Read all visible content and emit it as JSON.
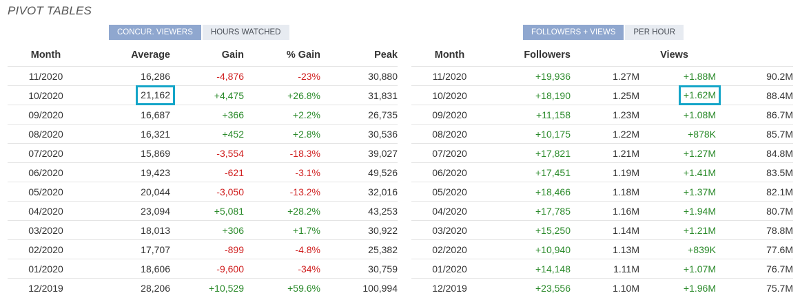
{
  "page_title": "PIVOT TABLES",
  "left": {
    "tabs": [
      {
        "label": "CONCUR. VIEWERS",
        "active": true
      },
      {
        "label": "HOURS WATCHED",
        "active": false
      }
    ],
    "headers": [
      "Month",
      "Average",
      "Gain",
      "% Gain",
      "Peak"
    ],
    "rows": [
      {
        "month": "11/2020",
        "average": "16,286",
        "gain": "-4,876",
        "pct": "-23%",
        "peak": "30,880",
        "dir": "neg"
      },
      {
        "month": "10/2020",
        "average": "21,162",
        "gain": "+4,475",
        "pct": "+26.8%",
        "peak": "31,831",
        "dir": "pos",
        "highlight": true
      },
      {
        "month": "09/2020",
        "average": "16,687",
        "gain": "+366",
        "pct": "+2.2%",
        "peak": "26,735",
        "dir": "pos"
      },
      {
        "month": "08/2020",
        "average": "16,321",
        "gain": "+452",
        "pct": "+2.8%",
        "peak": "30,536",
        "dir": "pos"
      },
      {
        "month": "07/2020",
        "average": "15,869",
        "gain": "-3,554",
        "pct": "-18.3%",
        "peak": "39,027",
        "dir": "neg"
      },
      {
        "month": "06/2020",
        "average": "19,423",
        "gain": "-621",
        "pct": "-3.1%",
        "peak": "49,526",
        "dir": "neg"
      },
      {
        "month": "05/2020",
        "average": "20,044",
        "gain": "-3,050",
        "pct": "-13.2%",
        "peak": "32,016",
        "dir": "neg"
      },
      {
        "month": "04/2020",
        "average": "23,094",
        "gain": "+5,081",
        "pct": "+28.2%",
        "peak": "43,253",
        "dir": "pos"
      },
      {
        "month": "03/2020",
        "average": "18,013",
        "gain": "+306",
        "pct": "+1.7%",
        "peak": "30,922",
        "dir": "pos"
      },
      {
        "month": "02/2020",
        "average": "17,707",
        "gain": "-899",
        "pct": "-4.8%",
        "peak": "25,382",
        "dir": "neg"
      },
      {
        "month": "01/2020",
        "average": "18,606",
        "gain": "-9,600",
        "pct": "-34%",
        "peak": "30,759",
        "dir": "neg"
      },
      {
        "month": "12/2019",
        "average": "28,206",
        "gain": "+10,529",
        "pct": "+59.6%",
        "peak": "100,994",
        "dir": "pos"
      }
    ]
  },
  "right": {
    "tabs": [
      {
        "label": "FOLLOWERS + VIEWS",
        "active": true
      },
      {
        "label": "PER HOUR",
        "active": false
      }
    ],
    "headers": [
      "Month",
      "Followers",
      "Views"
    ],
    "rows": [
      {
        "month": "11/2020",
        "followers_gain": "+19,936",
        "followers_total": "1.27M",
        "views_gain": "+1.88M",
        "views_total": "90.2M"
      },
      {
        "month": "10/2020",
        "followers_gain": "+18,190",
        "followers_total": "1.25M",
        "views_gain": "+1.62M",
        "views_total": "88.4M",
        "highlight": true
      },
      {
        "month": "09/2020",
        "followers_gain": "+11,158",
        "followers_total": "1.23M",
        "views_gain": "+1.08M",
        "views_total": "86.7M"
      },
      {
        "month": "08/2020",
        "followers_gain": "+10,175",
        "followers_total": "1.22M",
        "views_gain": "+878K",
        "views_total": "85.7M"
      },
      {
        "month": "07/2020",
        "followers_gain": "+17,821",
        "followers_total": "1.21M",
        "views_gain": "+1.27M",
        "views_total": "84.8M"
      },
      {
        "month": "06/2020",
        "followers_gain": "+17,451",
        "followers_total": "1.19M",
        "views_gain": "+1.41M",
        "views_total": "83.5M"
      },
      {
        "month": "05/2020",
        "followers_gain": "+18,466",
        "followers_total": "1.18M",
        "views_gain": "+1.37M",
        "views_total": "82.1M"
      },
      {
        "month": "04/2020",
        "followers_gain": "+17,785",
        "followers_total": "1.16M",
        "views_gain": "+1.94M",
        "views_total": "80.7M"
      },
      {
        "month": "03/2020",
        "followers_gain": "+15,250",
        "followers_total": "1.14M",
        "views_gain": "+1.21M",
        "views_total": "78.8M"
      },
      {
        "month": "02/2020",
        "followers_gain": "+10,940",
        "followers_total": "1.13M",
        "views_gain": "+839K",
        "views_total": "77.6M"
      },
      {
        "month": "01/2020",
        "followers_gain": "+14,148",
        "followers_total": "1.11M",
        "views_gain": "+1.07M",
        "views_total": "76.7M"
      },
      {
        "month": "12/2019",
        "followers_gain": "+23,556",
        "followers_total": "1.10M",
        "views_gain": "+1.96M",
        "views_total": "75.7M"
      }
    ]
  },
  "colors": {
    "positive": "#2a8a2a",
    "negative": "#d02020",
    "tab_active": "#8fa7cf",
    "highlight_box": "#14a5c8"
  }
}
